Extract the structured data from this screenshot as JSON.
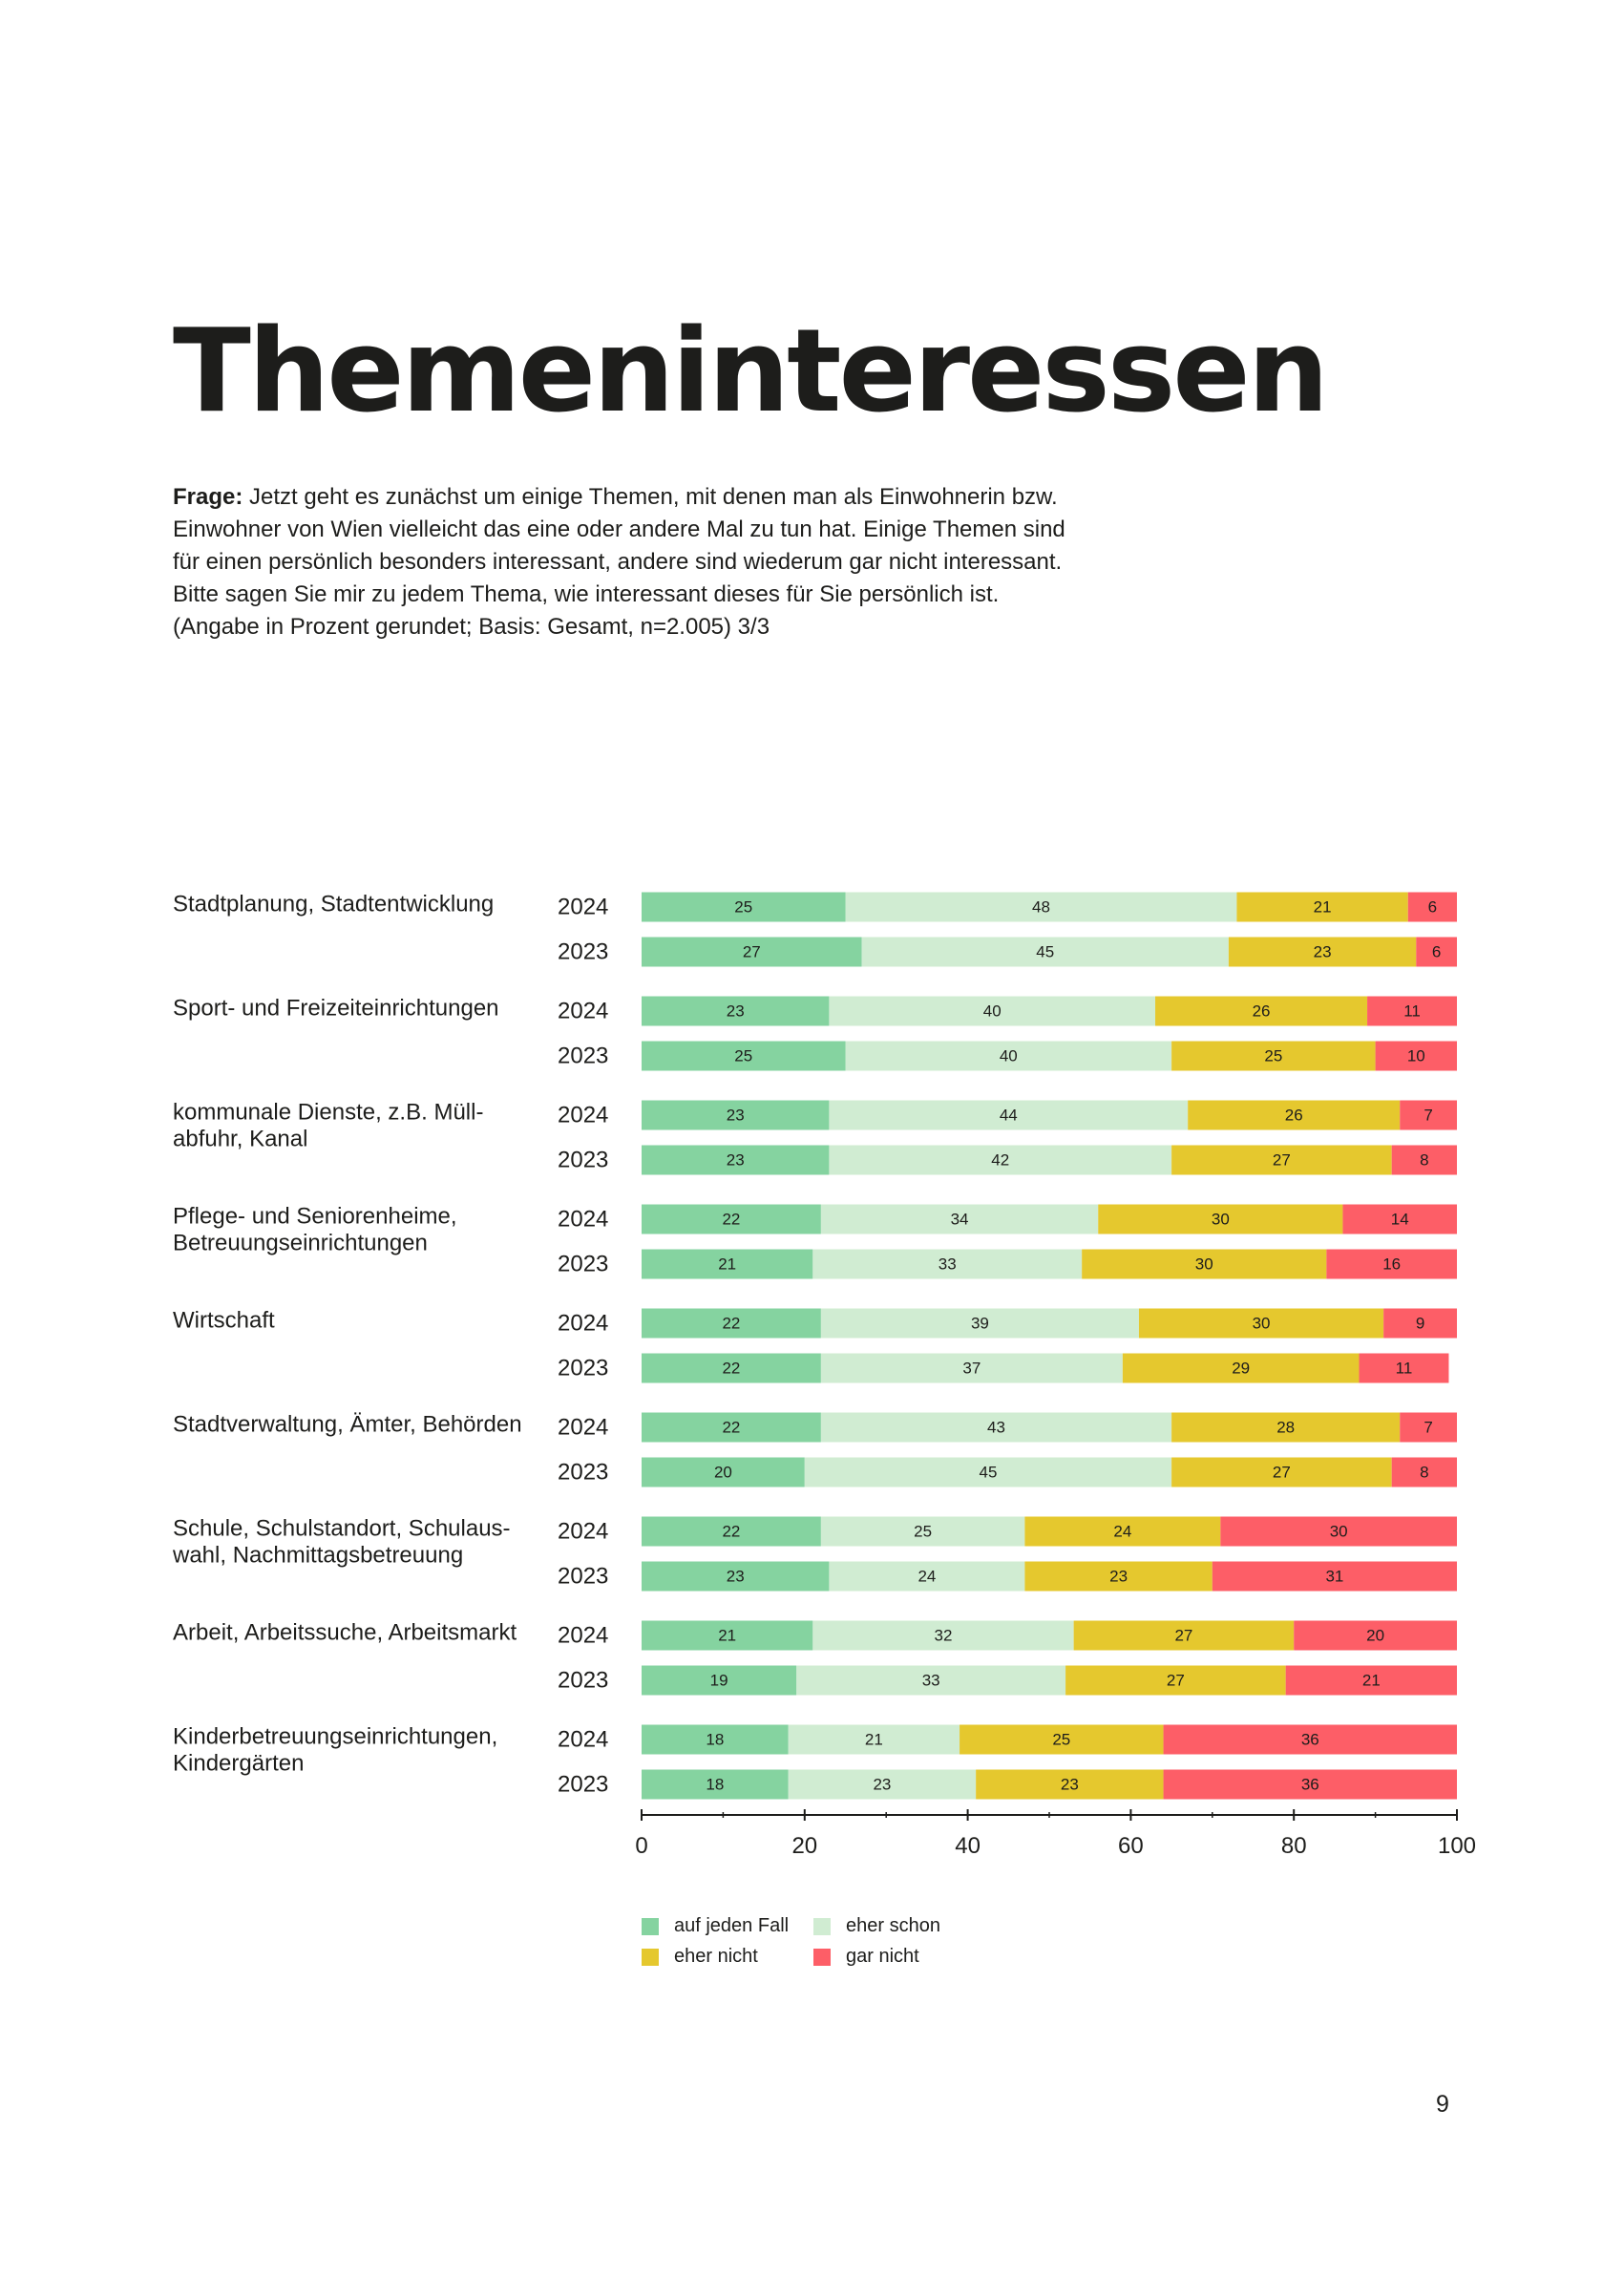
{
  "page": {
    "title": "Themeninteressen",
    "question_label": "Frage:",
    "question_lines": [
      "Jetzt geht es zunächst um einige Themen, mit denen man als Einwohnerin bzw.",
      "Einwohner von Wien vielleicht das eine oder andere Mal zu tun hat. Einige Themen sind",
      "für einen persönlich besonders interessant, andere sind wiederum gar nicht interessant.",
      "Bitte sagen Sie mir zu jedem Thema, wie interessant dieses für Sie persönlich ist.",
      "(Angabe in Prozent gerundet; Basis: Gesamt, n=2.005) 3/3"
    ],
    "page_number": "9"
  },
  "colors": {
    "auf_jeden_fall": "#85d3a0",
    "eher_schon": "#d0ecd2",
    "eher_nicht": "#e5c82e",
    "gar_nicht": "#fd5e67",
    "text": "#1d1d1b"
  },
  "legend": [
    {
      "label": "auf jeden Fall",
      "color": "#85d3a0"
    },
    {
      "label": "eher schon",
      "color": "#d0ecd2"
    },
    {
      "label": "eher nicht",
      "color": "#e5c82e"
    },
    {
      "label": "gar nicht",
      "color": "#fd5e67"
    }
  ],
  "chart_data": {
    "type": "bar",
    "orientation": "horizontal",
    "stacked": true,
    "xlim": [
      0,
      100
    ],
    "xticks": [
      0,
      20,
      40,
      60,
      80,
      100
    ],
    "xlabel": "",
    "ylabel": "",
    "series_names": [
      "auf jeden Fall",
      "eher schon",
      "eher nicht",
      "gar nicht"
    ],
    "legend_position": "bottom-left",
    "groups": [
      {
        "label": [
          "Stadtplanung, Stadtentwicklung"
        ],
        "rows": [
          {
            "year": "2024",
            "values": [
              25,
              48,
              21,
              6
            ]
          },
          {
            "year": "2023",
            "values": [
              27,
              45,
              23,
              6
            ]
          }
        ]
      },
      {
        "label": [
          "Sport- und Freizeiteinrichtungen"
        ],
        "rows": [
          {
            "year": "2024",
            "values": [
              23,
              40,
              26,
              11
            ]
          },
          {
            "year": "2023",
            "values": [
              25,
              40,
              25,
              10
            ]
          }
        ]
      },
      {
        "label": [
          "kommunale Dienste, z.B. Müll-",
          "abfuhr, Kanal"
        ],
        "rows": [
          {
            "year": "2024",
            "values": [
              23,
              44,
              26,
              7
            ]
          },
          {
            "year": "2023",
            "values": [
              23,
              42,
              27,
              8
            ]
          }
        ]
      },
      {
        "label": [
          "Pflege- und Seniorenheime,",
          "Betreuungseinrichtungen"
        ],
        "rows": [
          {
            "year": "2024",
            "values": [
              22,
              34,
              30,
              14
            ]
          },
          {
            "year": "2023",
            "values": [
              21,
              33,
              30,
              16
            ]
          }
        ]
      },
      {
        "label": [
          "Wirtschaft"
        ],
        "rows": [
          {
            "year": "2024",
            "values": [
              22,
              39,
              30,
              9
            ]
          },
          {
            "year": "2023",
            "values": [
              22,
              37,
              29,
              11
            ]
          }
        ]
      },
      {
        "label": [
          "Stadtverwaltung, Ämter, Behörden"
        ],
        "rows": [
          {
            "year": "2024",
            "values": [
              22,
              43,
              28,
              7
            ]
          },
          {
            "year": "2023",
            "values": [
              20,
              45,
              27,
              8
            ]
          }
        ]
      },
      {
        "label": [
          "Schule, Schulstandort, Schulaus-",
          "wahl, Nachmittagsbetreuung"
        ],
        "rows": [
          {
            "year": "2024",
            "values": [
              22,
              25,
              24,
              30
            ]
          },
          {
            "year": "2023",
            "values": [
              23,
              24,
              23,
              31
            ]
          }
        ]
      },
      {
        "label": [
          "Arbeit, Arbeitssuche, Arbeitsmarkt"
        ],
        "rows": [
          {
            "year": "2024",
            "values": [
              21,
              32,
              27,
              20
            ]
          },
          {
            "year": "2023",
            "values": [
              19,
              33,
              27,
              21
            ]
          }
        ]
      },
      {
        "label": [
          "Kinderbetreuungseinrichtungen,",
          "Kindergärten"
        ],
        "rows": [
          {
            "year": "2024",
            "values": [
              18,
              21,
              25,
              36
            ]
          },
          {
            "year": "2023",
            "values": [
              18,
              23,
              23,
              36
            ]
          }
        ]
      }
    ]
  }
}
